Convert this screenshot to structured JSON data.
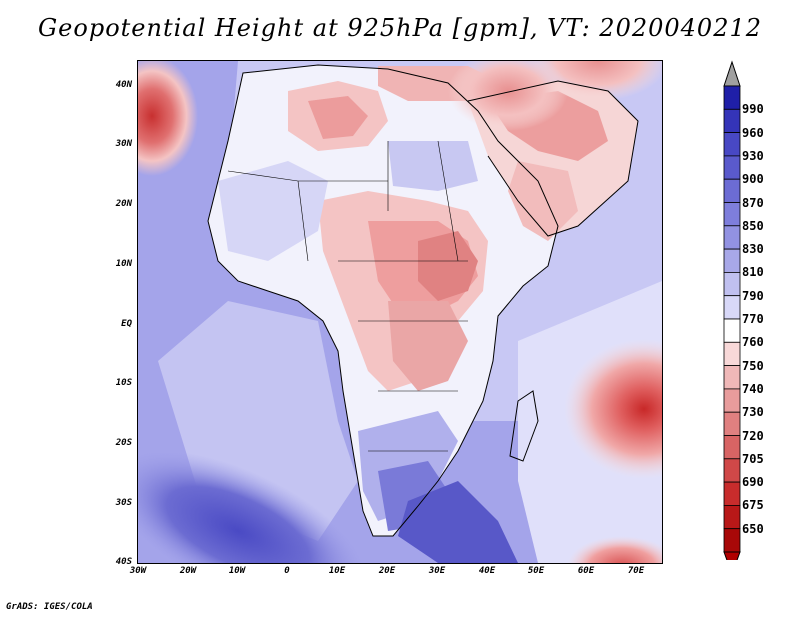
{
  "title": "Geopotential Height at 925hPa [gpm], VT: 2020040212",
  "footer": "GrADS: IGES/COLA",
  "map": {
    "lat_labels": [
      "40N",
      "30N",
      "20N",
      "10N",
      "EQ",
      "10S",
      "20S",
      "30S",
      "40S"
    ],
    "lon_labels": [
      "30W",
      "20W",
      "10W",
      "0",
      "10E",
      "20E",
      "30E",
      "40E",
      "50E",
      "60E",
      "70E"
    ]
  },
  "colorbar": {
    "labels": [
      "990",
      "960",
      "930",
      "900",
      "870",
      "850",
      "830",
      "810",
      "790",
      "770",
      "760",
      "750",
      "740",
      "730",
      "720",
      "705",
      "690",
      "675",
      "650"
    ],
    "top_arrow_color": "#a0a0a0",
    "colors": [
      "#1f1fa8",
      "#3434b8",
      "#4848c4",
      "#5a5acc",
      "#6c6cd4",
      "#7e7edc",
      "#9292e2",
      "#a8a8e8",
      "#c0c0f0",
      "#d8d8f8",
      "#ffffff",
      "#f8d8d8",
      "#f0b8b8",
      "#e89c9c",
      "#e08080",
      "#d86464",
      "#d04848",
      "#c82c2c",
      "#b81818",
      "#a80808"
    ],
    "bottom_arrow_color": "#b00000"
  }
}
